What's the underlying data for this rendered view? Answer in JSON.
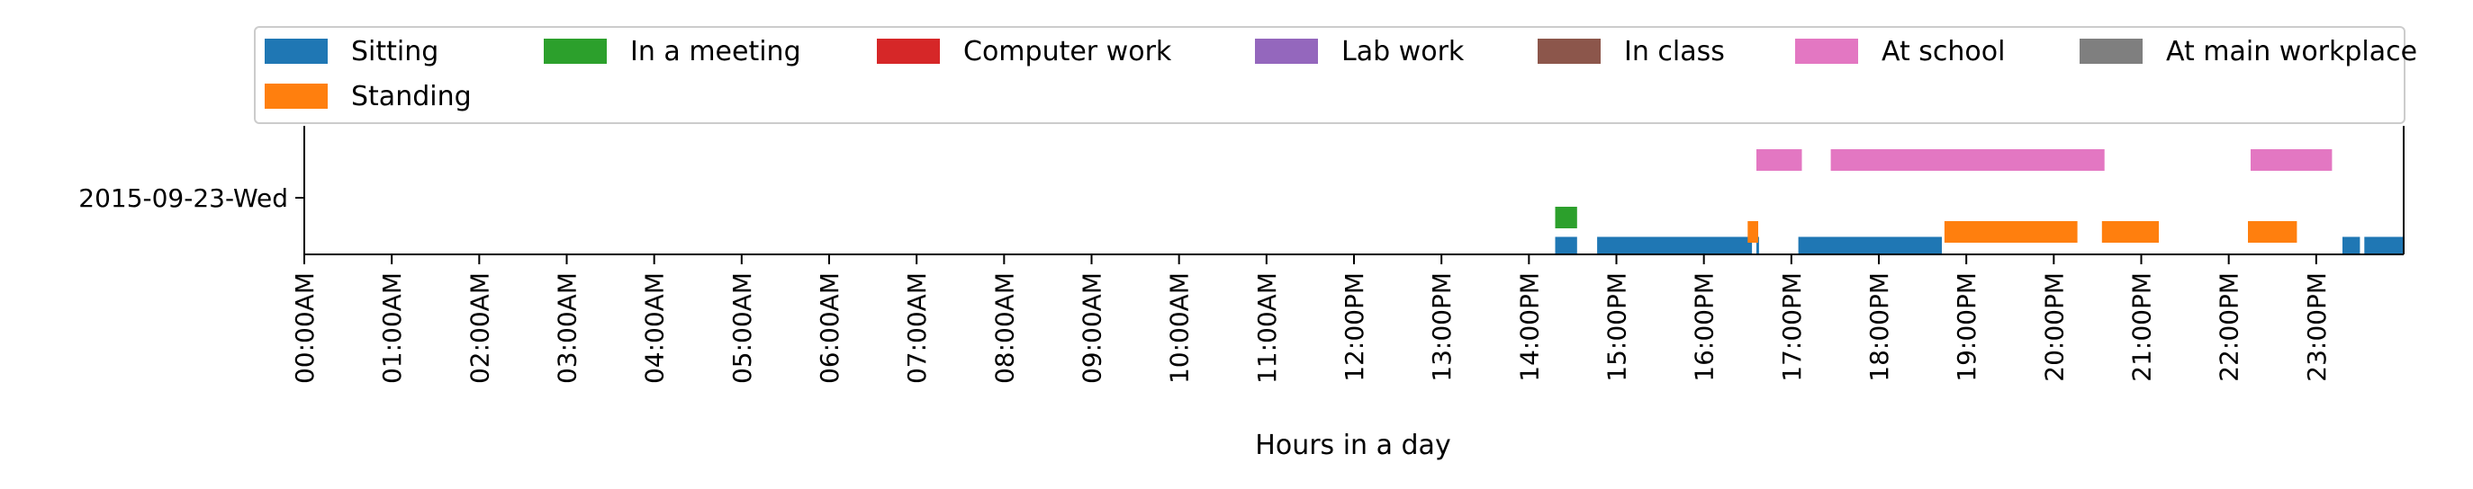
{
  "chart_data": {
    "type": "bar",
    "orientation": "horizontal-timeline",
    "title": "",
    "xlabel": "Hours in a day",
    "ylabel": "",
    "xlim": [
      0,
      24
    ],
    "x_ticks": [
      {
        "value": 0,
        "label": "00:00AM"
      },
      {
        "value": 1,
        "label": "01:00AM"
      },
      {
        "value": 2,
        "label": "02:00AM"
      },
      {
        "value": 3,
        "label": "03:00AM"
      },
      {
        "value": 4,
        "label": "04:00AM"
      },
      {
        "value": 5,
        "label": "05:00AM"
      },
      {
        "value": 6,
        "label": "06:00AM"
      },
      {
        "value": 7,
        "label": "07:00AM"
      },
      {
        "value": 8,
        "label": "08:00AM"
      },
      {
        "value": 9,
        "label": "09:00AM"
      },
      {
        "value": 10,
        "label": "10:00AM"
      },
      {
        "value": 11,
        "label": "11:00AM"
      },
      {
        "value": 12,
        "label": "12:00PM"
      },
      {
        "value": 13,
        "label": "13:00PM"
      },
      {
        "value": 14,
        "label": "14:00PM"
      },
      {
        "value": 15,
        "label": "15:00PM"
      },
      {
        "value": 16,
        "label": "16:00PM"
      },
      {
        "value": 17,
        "label": "17:00PM"
      },
      {
        "value": 18,
        "label": "18:00PM"
      },
      {
        "value": 19,
        "label": "19:00PM"
      },
      {
        "value": 20,
        "label": "20:00PM"
      },
      {
        "value": 21,
        "label": "21:00PM"
      },
      {
        "value": 22,
        "label": "22:00PM"
      },
      {
        "value": 23,
        "label": "23:00PM"
      }
    ],
    "y_categories": [
      "2015-09-23-Wed"
    ],
    "grid": false,
    "legend_position": "top",
    "series": [
      {
        "name": "Sitting",
        "color": "#1f77b4",
        "lane": 0,
        "intervals": [
          [
            14.3,
            14.55
          ],
          [
            14.78,
            16.55
          ],
          [
            16.6,
            16.63
          ],
          [
            17.08,
            18.72
          ],
          [
            23.3,
            23.5
          ],
          [
            23.55,
            24.0
          ]
        ]
      },
      {
        "name": "Standing",
        "color": "#ff7f0e",
        "lane": 1,
        "intervals": [
          [
            16.5,
            16.62
          ],
          [
            18.75,
            20.27
          ],
          [
            20.55,
            21.2
          ],
          [
            22.22,
            22.78
          ]
        ]
      },
      {
        "name": "In a meeting",
        "color": "#2ca02c",
        "lane": 2,
        "intervals": [
          [
            14.3,
            14.55
          ]
        ]
      },
      {
        "name": "Computer work",
        "color": "#d62728",
        "lane": 3,
        "intervals": []
      },
      {
        "name": "Lab work",
        "color": "#9467bd",
        "lane": 4,
        "intervals": []
      },
      {
        "name": "In class",
        "color": "#8c564b",
        "lane": 5,
        "intervals": []
      },
      {
        "name": "At school",
        "color": "#e377c2",
        "lane": 6,
        "intervals": [
          [
            16.6,
            17.12
          ],
          [
            17.45,
            20.58
          ],
          [
            22.25,
            23.18
          ]
        ]
      },
      {
        "name": "At main workplace",
        "color": "#7f7f7f",
        "lane": 7,
        "intervals": []
      }
    ]
  }
}
